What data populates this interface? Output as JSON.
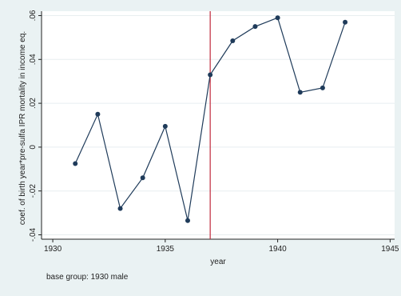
{
  "chart_data": {
    "type": "line",
    "title": "",
    "xlabel": "year",
    "ylabel": "coef. of birth year*pre-sulfa IPR mortality in income eq.",
    "note": "base group: 1930 male",
    "xlim": [
      1929.5,
      1945.2
    ],
    "ylim": [
      -0.042,
      0.062
    ],
    "x_ticks": [
      1930,
      1935,
      1940,
      1945
    ],
    "y_ticks": [
      -0.04,
      -0.02,
      0,
      0.02,
      0.04,
      0.06
    ],
    "y_tick_labels": [
      "-.04",
      "-.02",
      "0",
      ".02",
      ".04",
      ".06"
    ],
    "grid": true,
    "reference_line": {
      "x": 1937,
      "color": "#c0283a"
    },
    "series": [
      {
        "color": "#1f3b5a",
        "x": [
          1931,
          1932,
          1933,
          1934,
          1935,
          1936,
          1937,
          1938,
          1939,
          1940,
          1941,
          1942,
          1943
        ],
        "y": [
          -0.0075,
          0.015,
          -0.028,
          -0.014,
          0.0095,
          -0.0335,
          0.033,
          0.0485,
          0.055,
          0.059,
          0.025,
          0.027,
          0.057
        ]
      }
    ]
  }
}
